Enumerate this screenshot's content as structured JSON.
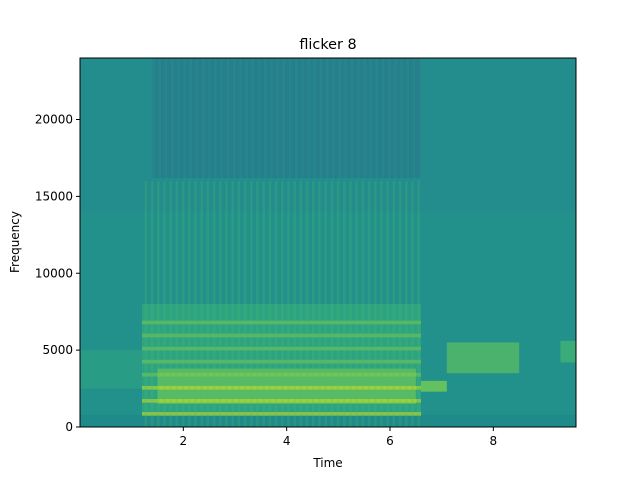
{
  "chart_data": {
    "type": "heatmap",
    "title": "flicker 8",
    "xlabel": "Time",
    "ylabel": "Frequency",
    "xlim": [
      0,
      9.6
    ],
    "ylim": [
      0,
      24000
    ],
    "xticks": [
      2,
      4,
      6,
      8
    ],
    "yticks": [
      0,
      5000,
      10000,
      15000,
      20000
    ],
    "colormap": "viridis",
    "grid": false,
    "time_segments": [
      {
        "t_start": 0.0,
        "t_end": 1.2,
        "description": "low-level noise, faint band 2500-5000 Hz"
      },
      {
        "t_start": 1.2,
        "t_end": 6.6,
        "description": "strong harmonic bursts 1000-8000 Hz, strongest near 2000-3000 Hz; darker region above 16000 Hz"
      },
      {
        "t_start": 6.6,
        "t_end": 7.1,
        "description": "steady tone near 2700 Hz"
      },
      {
        "t_start": 7.1,
        "t_end": 8.5,
        "description": "moderate band 3500-5500 Hz"
      },
      {
        "t_start": 8.5,
        "t_end": 9.6,
        "description": "faint noise, brief band near 5000 Hz at end"
      }
    ]
  }
}
